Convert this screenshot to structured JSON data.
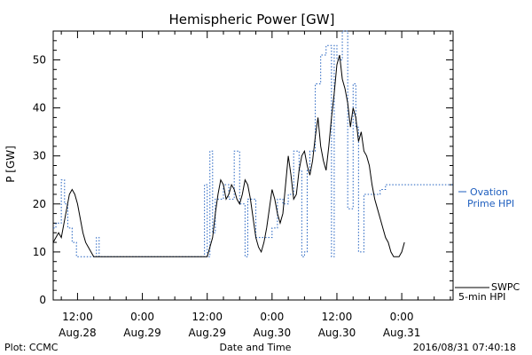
{
  "chart_data": {
    "type": "line",
    "title": "Hemispheric Power [GW]",
    "ylabel": "P [GW]",
    "xlabel": "Date and Time",
    "ylim": [
      0,
      56
    ],
    "yticks": [
      0,
      10,
      20,
      30,
      40,
      50
    ],
    "x_unit": "hours since 2016-08-28 00:00 UT",
    "xlim": [
      7.5,
      81.5
    ],
    "xticks": [
      {
        "x": 12,
        "line1": "12:00",
        "line2": "Aug.28"
      },
      {
        "x": 24,
        "line1": "0:00",
        "line2": "Aug.29"
      },
      {
        "x": 36,
        "line1": "12:00",
        "line2": "Aug.29"
      },
      {
        "x": 48,
        "line1": "0:00",
        "line2": "Aug.30"
      },
      {
        "x": 60,
        "line1": "12:00",
        "line2": "Aug.30"
      },
      {
        "x": 72,
        "line1": "0:00",
        "line2": "Aug.31"
      }
    ],
    "series": [
      {
        "name": "Ovation Prime HPI",
        "label_line1": "Ovation",
        "label_line2": "Prime HPI",
        "style": "dotted-step",
        "color": "#1f5fbf",
        "points": [
          [
            7.5,
            15
          ],
          [
            8.0,
            16
          ],
          [
            9.0,
            25
          ],
          [
            9.6,
            20
          ],
          [
            10.2,
            15
          ],
          [
            11.0,
            12
          ],
          [
            11.8,
            9
          ],
          [
            15.0,
            9
          ],
          [
            15.5,
            13
          ],
          [
            16.0,
            9
          ],
          [
            35.0,
            9
          ],
          [
            35.5,
            24
          ],
          [
            36.0,
            9
          ],
          [
            36.5,
            31
          ],
          [
            37.0,
            14
          ],
          [
            37.5,
            21
          ],
          [
            39.0,
            24
          ],
          [
            40.0,
            21
          ],
          [
            41.0,
            31
          ],
          [
            42.0,
            20
          ],
          [
            43.0,
            9
          ],
          [
            43.5,
            21
          ],
          [
            45.0,
            13
          ],
          [
            46.0,
            13
          ],
          [
            48.0,
            15
          ],
          [
            49.0,
            21
          ],
          [
            50.0,
            20
          ],
          [
            51.0,
            22
          ],
          [
            52.0,
            31
          ],
          [
            53.0,
            27
          ],
          [
            53.5,
            9
          ],
          [
            54.0,
            10
          ],
          [
            54.5,
            27
          ],
          [
            55.0,
            31
          ],
          [
            56.0,
            45
          ],
          [
            57.0,
            51
          ],
          [
            58.0,
            53
          ],
          [
            59.0,
            9
          ],
          [
            59.5,
            53
          ],
          [
            60.0,
            50
          ],
          [
            61.0,
            56
          ],
          [
            62.0,
            19
          ],
          [
            63.0,
            45
          ],
          [
            63.5,
            36
          ],
          [
            64.0,
            10
          ],
          [
            65.0,
            22
          ],
          [
            67.0,
            22
          ],
          [
            68.0,
            23
          ],
          [
            69.0,
            24
          ],
          [
            70.0,
            24
          ]
        ]
      },
      {
        "name": "SWPC 5-min HPI",
        "label_line1": "SWPC",
        "label_line2": "5-min HPI",
        "style": "solid",
        "color": "#000000",
        "points": [
          [
            7.5,
            12
          ],
          [
            8.0,
            13
          ],
          [
            8.5,
            14
          ],
          [
            9.0,
            13
          ],
          [
            9.5,
            16
          ],
          [
            10.0,
            19
          ],
          [
            10.5,
            22
          ],
          [
            11.0,
            23
          ],
          [
            11.5,
            22
          ],
          [
            12.0,
            20
          ],
          [
            12.5,
            17
          ],
          [
            13.0,
            14
          ],
          [
            13.5,
            12
          ],
          [
            14.0,
            11
          ],
          [
            14.5,
            10
          ],
          [
            15.0,
            9
          ],
          [
            24.0,
            9
          ],
          [
            36.0,
            9
          ],
          [
            37.0,
            13
          ],
          [
            37.5,
            18
          ],
          [
            38.0,
            22
          ],
          [
            38.5,
            25
          ],
          [
            39.0,
            24
          ],
          [
            39.5,
            21
          ],
          [
            40.0,
            22
          ],
          [
            40.5,
            24
          ],
          [
            41.0,
            23
          ],
          [
            41.5,
            21
          ],
          [
            42.0,
            20
          ],
          [
            42.5,
            22
          ],
          [
            43.0,
            25
          ],
          [
            43.5,
            24
          ],
          [
            44.0,
            21
          ],
          [
            44.5,
            17
          ],
          [
            45.0,
            13
          ],
          [
            45.5,
            11
          ],
          [
            46.0,
            10
          ],
          [
            46.5,
            12
          ],
          [
            47.0,
            15
          ],
          [
            47.5,
            19
          ],
          [
            48.0,
            23
          ],
          [
            48.5,
            21
          ],
          [
            49.0,
            18
          ],
          [
            49.5,
            16
          ],
          [
            50.0,
            18
          ],
          [
            50.5,
            24
          ],
          [
            51.0,
            30
          ],
          [
            51.5,
            26
          ],
          [
            52.0,
            21
          ],
          [
            52.5,
            22
          ],
          [
            53.0,
            27
          ],
          [
            53.5,
            30
          ],
          [
            54.0,
            31
          ],
          [
            54.5,
            28
          ],
          [
            55.0,
            26
          ],
          [
            55.5,
            29
          ],
          [
            56.0,
            34
          ],
          [
            56.5,
            38
          ],
          [
            57.0,
            32
          ],
          [
            57.5,
            29
          ],
          [
            58.0,
            27
          ],
          [
            58.5,
            32
          ],
          [
            59.0,
            38
          ],
          [
            59.5,
            43
          ],
          [
            60.0,
            49
          ],
          [
            60.5,
            51
          ],
          [
            61.0,
            46
          ],
          [
            61.5,
            44
          ],
          [
            62.0,
            41
          ],
          [
            62.5,
            36
          ],
          [
            63.0,
            40
          ],
          [
            63.5,
            38
          ],
          [
            64.0,
            33
          ],
          [
            64.5,
            35
          ],
          [
            65.0,
            31
          ],
          [
            65.5,
            30
          ],
          [
            66.0,
            28
          ],
          [
            66.5,
            24
          ],
          [
            67.0,
            21
          ],
          [
            67.5,
            19
          ],
          [
            68.0,
            17
          ],
          [
            68.5,
            15
          ],
          [
            69.0,
            13
          ],
          [
            69.5,
            12
          ],
          [
            70.0,
            10
          ],
          [
            70.5,
            9
          ],
          [
            71.5,
            9
          ],
          [
            72.0,
            10
          ],
          [
            72.5,
            12
          ]
        ]
      }
    ],
    "annotation_left": "Plot: CCMC",
    "annotation_right": "2016/08/31 07:40:18"
  }
}
